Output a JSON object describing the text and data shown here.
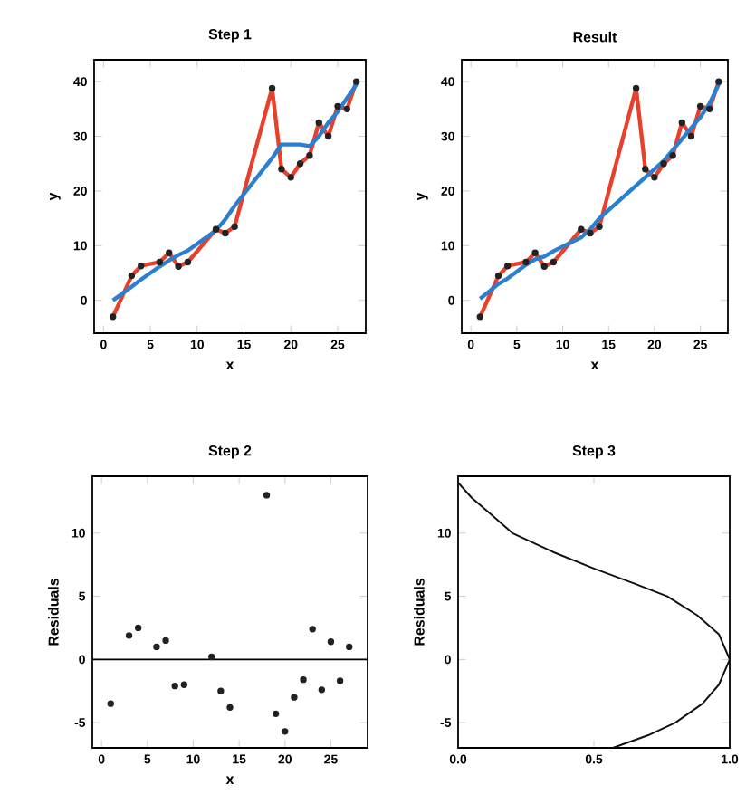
{
  "chart_data": [
    {
      "type": "line",
      "title": "Step 1",
      "xlabel": "x",
      "ylabel": "y",
      "xlim": [
        -1,
        28
      ],
      "ylim": [
        -6,
        44
      ],
      "xticks": [
        0,
        5,
        10,
        15,
        20,
        25
      ],
      "yticks": [
        0,
        10,
        20,
        30,
        40
      ],
      "series": [
        {
          "color": "#e8402a",
          "marker": "none",
          "x": [
            1,
            3,
            4,
            6,
            7,
            8,
            9,
            12,
            13,
            14,
            18,
            19,
            20,
            21,
            22,
            23,
            24,
            25,
            26,
            27
          ],
          "values": [
            -3,
            4.5,
            6.3,
            7,
            8.7,
            6.2,
            7,
            13,
            12.3,
            13.5,
            38.8,
            24,
            22.5,
            25,
            26.5,
            32.5,
            30,
            35.5,
            35,
            40
          ]
        },
        {
          "color": "#2a7fd0",
          "marker": "none",
          "x": [
            1,
            3,
            4,
            6,
            7,
            8,
            9,
            12,
            13,
            14,
            18,
            19,
            20,
            21,
            22,
            23,
            24,
            25,
            26,
            27
          ],
          "values": [
            0,
            2.5,
            3.8,
            6.2,
            7.3,
            8.3,
            9.1,
            12.8,
            14.8,
            17.3,
            26,
            28.5,
            28.5,
            28.5,
            28.2,
            30,
            32.5,
            34.5,
            37,
            39.5
          ]
        },
        {
          "type": "scatter",
          "color": "#222222",
          "marker": "circle",
          "x": [
            1,
            3,
            4,
            6,
            7,
            8,
            9,
            12,
            13,
            14,
            18,
            19,
            20,
            21,
            22,
            23,
            24,
            25,
            26,
            27
          ],
          "values": [
            -3,
            4.5,
            6.3,
            7,
            8.7,
            6.2,
            7,
            13,
            12.3,
            13.5,
            38.8,
            24,
            22.5,
            25,
            26.5,
            32.5,
            30,
            35.5,
            35,
            40
          ]
        }
      ]
    },
    {
      "type": "line",
      "title": "Result",
      "xlabel": "x",
      "ylabel": "y",
      "xlim": [
        -1,
        28
      ],
      "ylim": [
        -6,
        44
      ],
      "xticks": [
        0,
        5,
        10,
        15,
        20,
        25
      ],
      "yticks": [
        0,
        10,
        20,
        30,
        40
      ],
      "series": [
        {
          "color": "#e8402a",
          "marker": "none",
          "x": [
            1,
            3,
            4,
            6,
            7,
            8,
            9,
            12,
            13,
            14,
            18,
            19,
            20,
            21,
            22,
            23,
            24,
            25,
            26,
            27
          ],
          "values": [
            -3,
            4.5,
            6.3,
            7,
            8.7,
            6.2,
            7,
            13,
            12.3,
            13.5,
            38.8,
            24,
            22.5,
            25,
            26.5,
            32.5,
            30,
            35.5,
            35,
            40
          ]
        },
        {
          "color": "#2a7fd0",
          "marker": "none",
          "x": [
            1,
            3,
            4,
            6,
            7,
            8,
            9,
            12,
            13,
            14,
            18,
            19,
            20,
            21,
            22,
            23,
            24,
            25,
            26,
            27
          ],
          "values": [
            0.3,
            3,
            4,
            6.5,
            7.5,
            8,
            9,
            11.5,
            13,
            15,
            21,
            22.5,
            24,
            25.5,
            27.5,
            29.5,
            31.5,
            33.5,
            36,
            39.5
          ]
        },
        {
          "type": "scatter",
          "color": "#222222",
          "marker": "circle",
          "x": [
            1,
            3,
            4,
            6,
            7,
            8,
            9,
            12,
            13,
            14,
            18,
            19,
            20,
            21,
            22,
            23,
            24,
            25,
            26,
            27
          ],
          "values": [
            -3,
            4.5,
            6.3,
            7,
            8.7,
            6.2,
            7,
            13,
            12.3,
            13.5,
            38.8,
            24,
            22.5,
            25,
            26.5,
            32.5,
            30,
            35.5,
            35,
            40
          ]
        }
      ]
    },
    {
      "type": "scatter",
      "title": "Step 2",
      "xlabel": "x",
      "ylabel": "Residuals",
      "xlim": [
        -1,
        29
      ],
      "ylim": [
        -7,
        14.5
      ],
      "xticks": [
        0,
        5,
        10,
        15,
        20,
        25
      ],
      "yticks": [
        -5,
        0,
        5,
        10
      ],
      "ref_lines": [
        {
          "axis": "y",
          "value": 0,
          "color": "#000000"
        }
      ],
      "series": [
        {
          "color": "#222222",
          "marker": "circle",
          "x": [
            1,
            3,
            4,
            6,
            7,
            8,
            9,
            12,
            13,
            14,
            18,
            19,
            20,
            21,
            22,
            23,
            24,
            25,
            26,
            27
          ],
          "values": [
            -3.5,
            1.9,
            2.5,
            1.0,
            1.5,
            -2.1,
            -2.0,
            0.2,
            -2.5,
            -3.8,
            13,
            -4.3,
            -5.7,
            -3.0,
            -1.6,
            2.4,
            -2.4,
            1.4,
            -1.7,
            1.0
          ]
        }
      ]
    },
    {
      "type": "line",
      "title": "Step 3",
      "ylabel": "Residuals",
      "xlim": [
        0,
        1
      ],
      "ylim": [
        -7,
        14.5
      ],
      "xticks": [
        {
          "value": 0,
          "label": "0.0"
        },
        {
          "value": 0.5,
          "label": "0.5"
        },
        {
          "value": 1,
          "label": "1.0"
        }
      ],
      "yticks": [
        -5,
        0,
        5,
        10
      ],
      "series": [
        {
          "color": "#111111",
          "marker": "none",
          "x": [
            0,
            0.05,
            0.12,
            0.2,
            0.35,
            0.5,
            0.65,
            0.77,
            0.88,
            0.96,
            1.0,
            0.96,
            0.9,
            0.8,
            0.7,
            0.57
          ],
          "values": [
            14,
            12.8,
            11.5,
            10,
            8.5,
            7.2,
            6,
            5,
            3.5,
            2,
            0,
            -2,
            -3.5,
            -5,
            -6,
            -7
          ]
        }
      ]
    }
  ]
}
